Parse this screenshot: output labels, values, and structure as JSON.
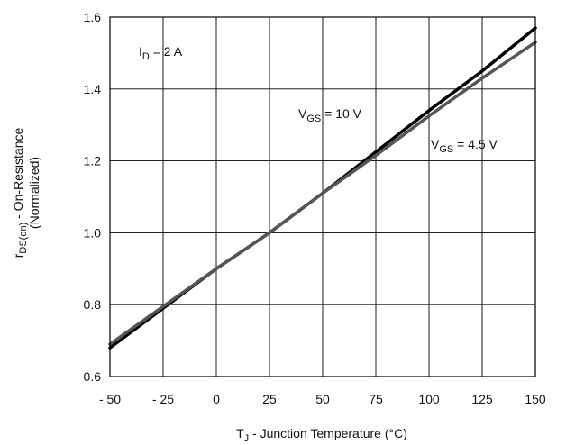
{
  "chart_data": {
    "type": "line",
    "xlabel": {
      "main": "T",
      "sub": "J",
      "rest": " - Junction Temperature (°C)"
    },
    "ylabel": {
      "main": "r",
      "sub": "DS(on)",
      "rest": " - On-Resistance",
      "line2": "(Normalized)"
    },
    "xlim": [
      -50,
      150
    ],
    "ylim": [
      0.6,
      1.6
    ],
    "xticks": [
      -50,
      -25,
      0,
      25,
      50,
      75,
      100,
      125,
      150
    ],
    "xtick_labels": [
      "- 50",
      "- 25",
      "0",
      "25",
      "50",
      "75",
      "100",
      "125",
      "150"
    ],
    "yticks": [
      0.6,
      0.8,
      1.0,
      1.2,
      1.4,
      1.6
    ],
    "ytick_labels": [
      "0.6",
      "0.8",
      "1.0",
      "1.2",
      "1.4",
      "1.6"
    ],
    "grid": true,
    "annotations": [
      {
        "main": "I",
        "sub": "D",
        "rest": " = 2 A"
      },
      {
        "main": "V",
        "sub": "GS",
        "rest": " = 10 V"
      },
      {
        "main": "V",
        "sub": "GS",
        "rest": " = 4.5 V"
      }
    ],
    "series": [
      {
        "key": "vgs10",
        "color": "#000000",
        "x": [
          -50,
          -25,
          0,
          25,
          50,
          75,
          100,
          125,
          150
        ],
        "y": [
          0.68,
          0.79,
          0.9,
          1.0,
          1.11,
          1.225,
          1.34,
          1.45,
          1.57
        ]
      },
      {
        "key": "vgs45",
        "color": "#555555",
        "x": [
          -50,
          -25,
          0,
          25,
          50,
          75,
          100,
          125,
          150
        ],
        "y": [
          0.69,
          0.795,
          0.9,
          1.0,
          1.11,
          1.215,
          1.325,
          1.43,
          1.53
        ]
      }
    ]
  }
}
